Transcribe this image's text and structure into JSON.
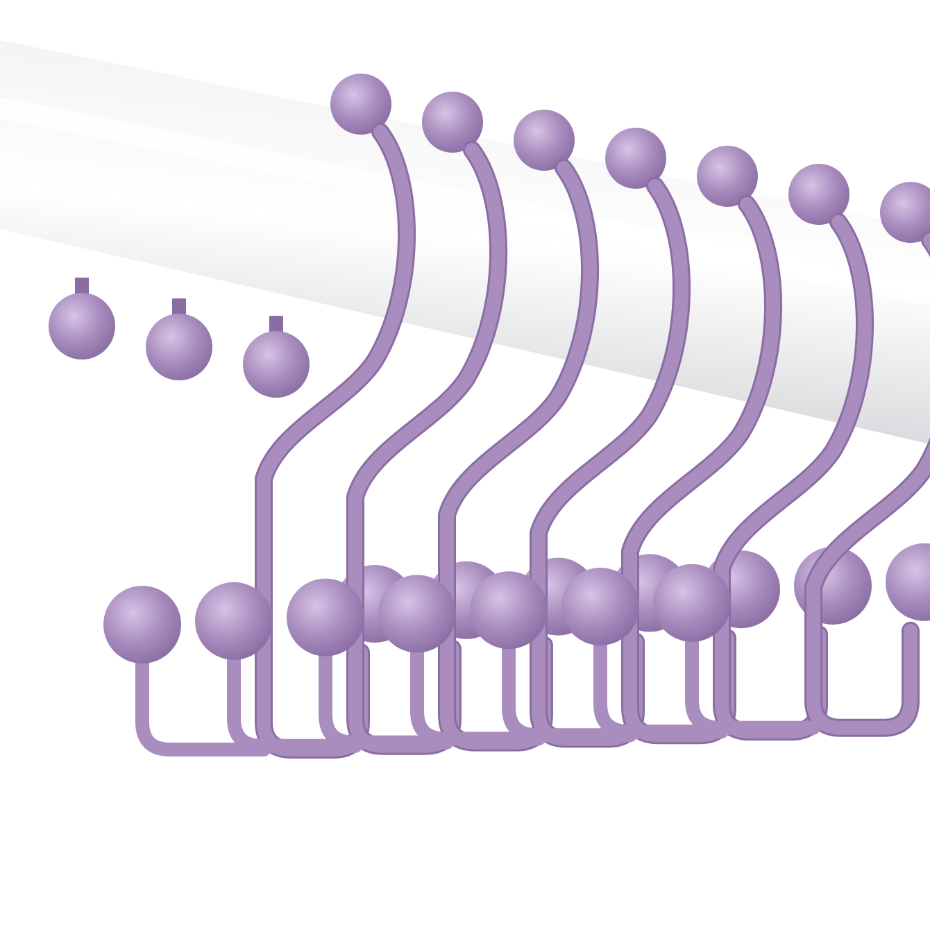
{
  "scene": {
    "subject": "shower-curtain-hooks",
    "hook_count": 7,
    "colors": {
      "background": "#ffffff",
      "rod_light": "#f4f4f6",
      "rod_mid": "#d9d9dd",
      "rod_dark": "#b9b9c0",
      "hook": "#a98dbf",
      "hook_shadow": "#8a6da3",
      "hook_light": "#d6c4e4"
    }
  }
}
